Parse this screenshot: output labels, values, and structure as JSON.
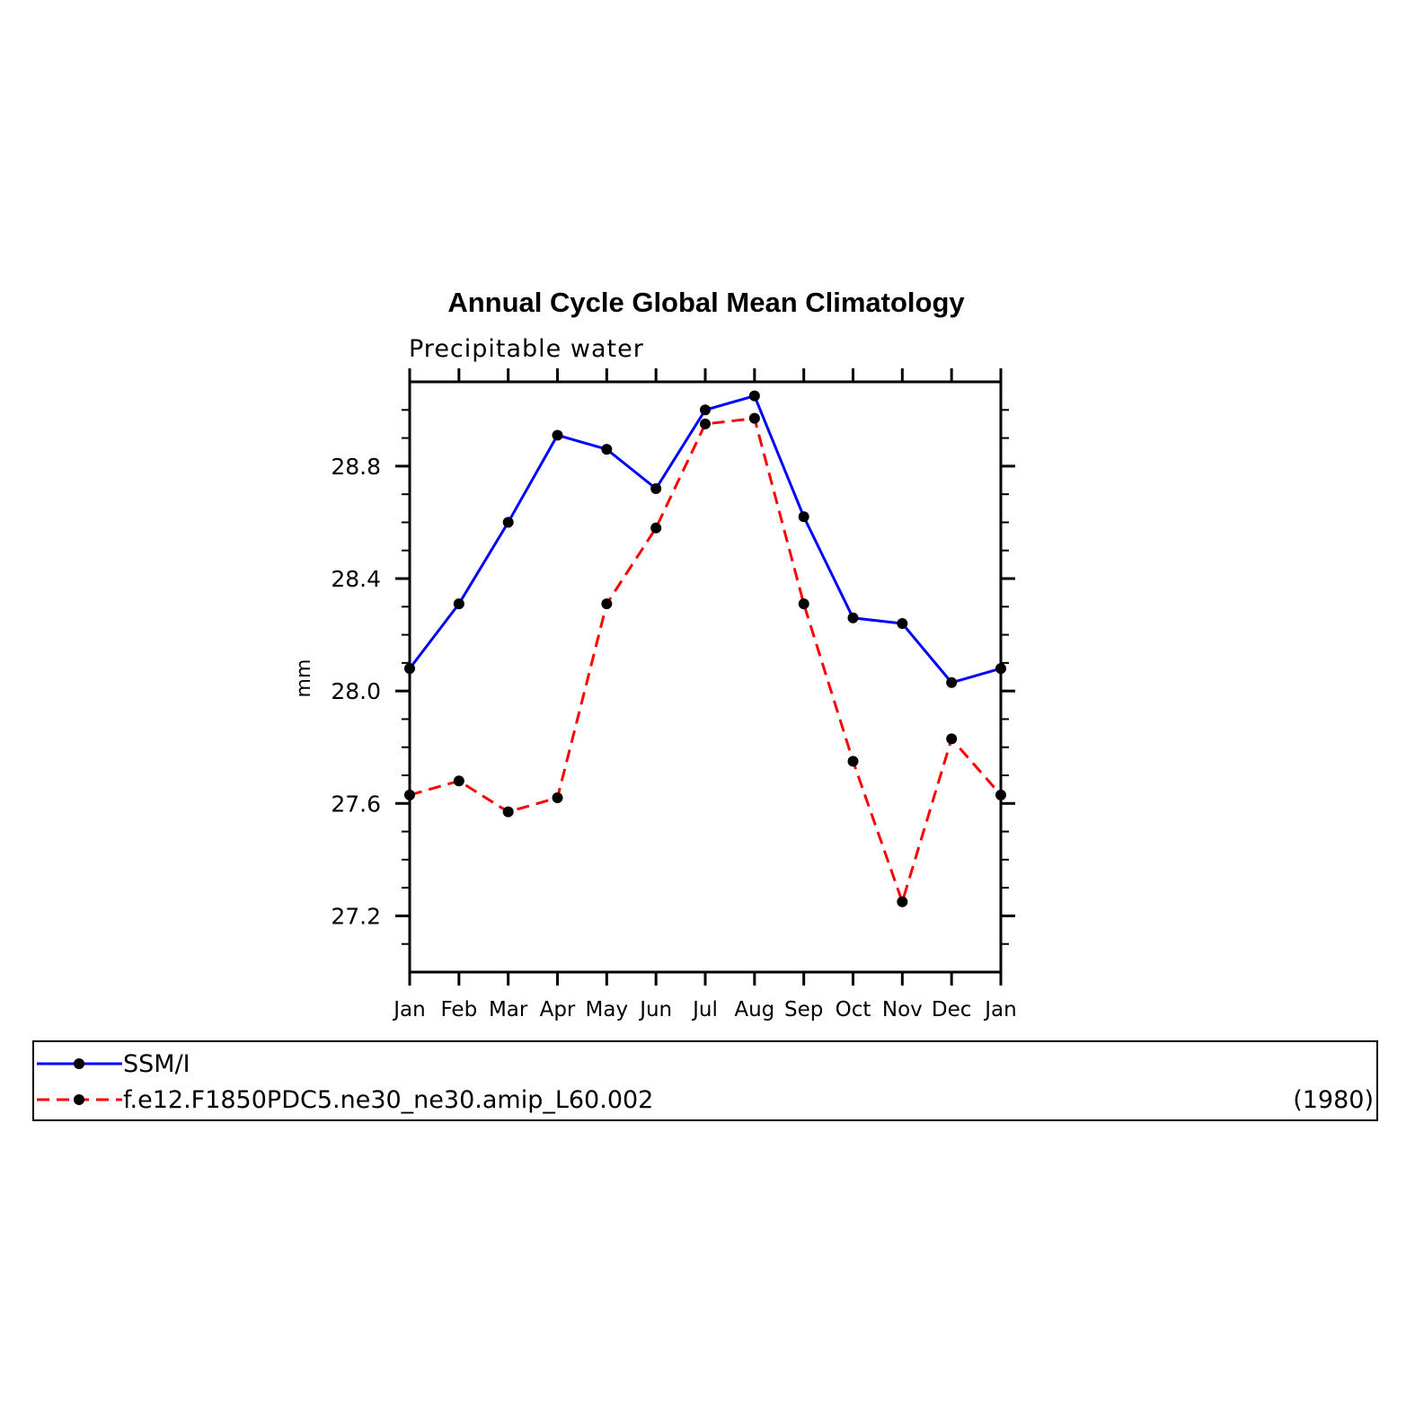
{
  "chart_data": {
    "type": "line",
    "title": "Annual Cycle Global Mean Climatology",
    "subtitle": "Precipitable water",
    "xlabel": "",
    "ylabel": "mm",
    "categories": [
      "Jan",
      "Feb",
      "Mar",
      "Apr",
      "May",
      "Jun",
      "Jul",
      "Aug",
      "Sep",
      "Oct",
      "Nov",
      "Dec",
      "Jan"
    ],
    "yticks": [
      "27.2",
      "27.6",
      "28.0",
      "28.4",
      "28.8"
    ],
    "ylim": [
      27.0,
      29.1
    ],
    "grid": false,
    "legend_position": "bottom",
    "series": [
      {
        "name": "SSM/I",
        "color": "#0000ff",
        "dash": "solid",
        "marker": "filled-circle",
        "values": [
          28.08,
          28.31,
          28.6,
          28.91,
          28.86,
          28.72,
          29.0,
          29.05,
          28.62,
          28.26,
          28.24,
          28.03,
          28.08
        ]
      },
      {
        "name": "f.e12.F1850PDC5.ne30_ne30.amip_L60.002",
        "note": "(1980)",
        "color": "#ff0000",
        "dash": "dashed",
        "marker": "filled-circle",
        "values": [
          27.63,
          27.68,
          27.57,
          27.62,
          28.31,
          28.58,
          28.95,
          28.97,
          28.31,
          27.75,
          27.25,
          27.83,
          27.63
        ]
      }
    ]
  }
}
